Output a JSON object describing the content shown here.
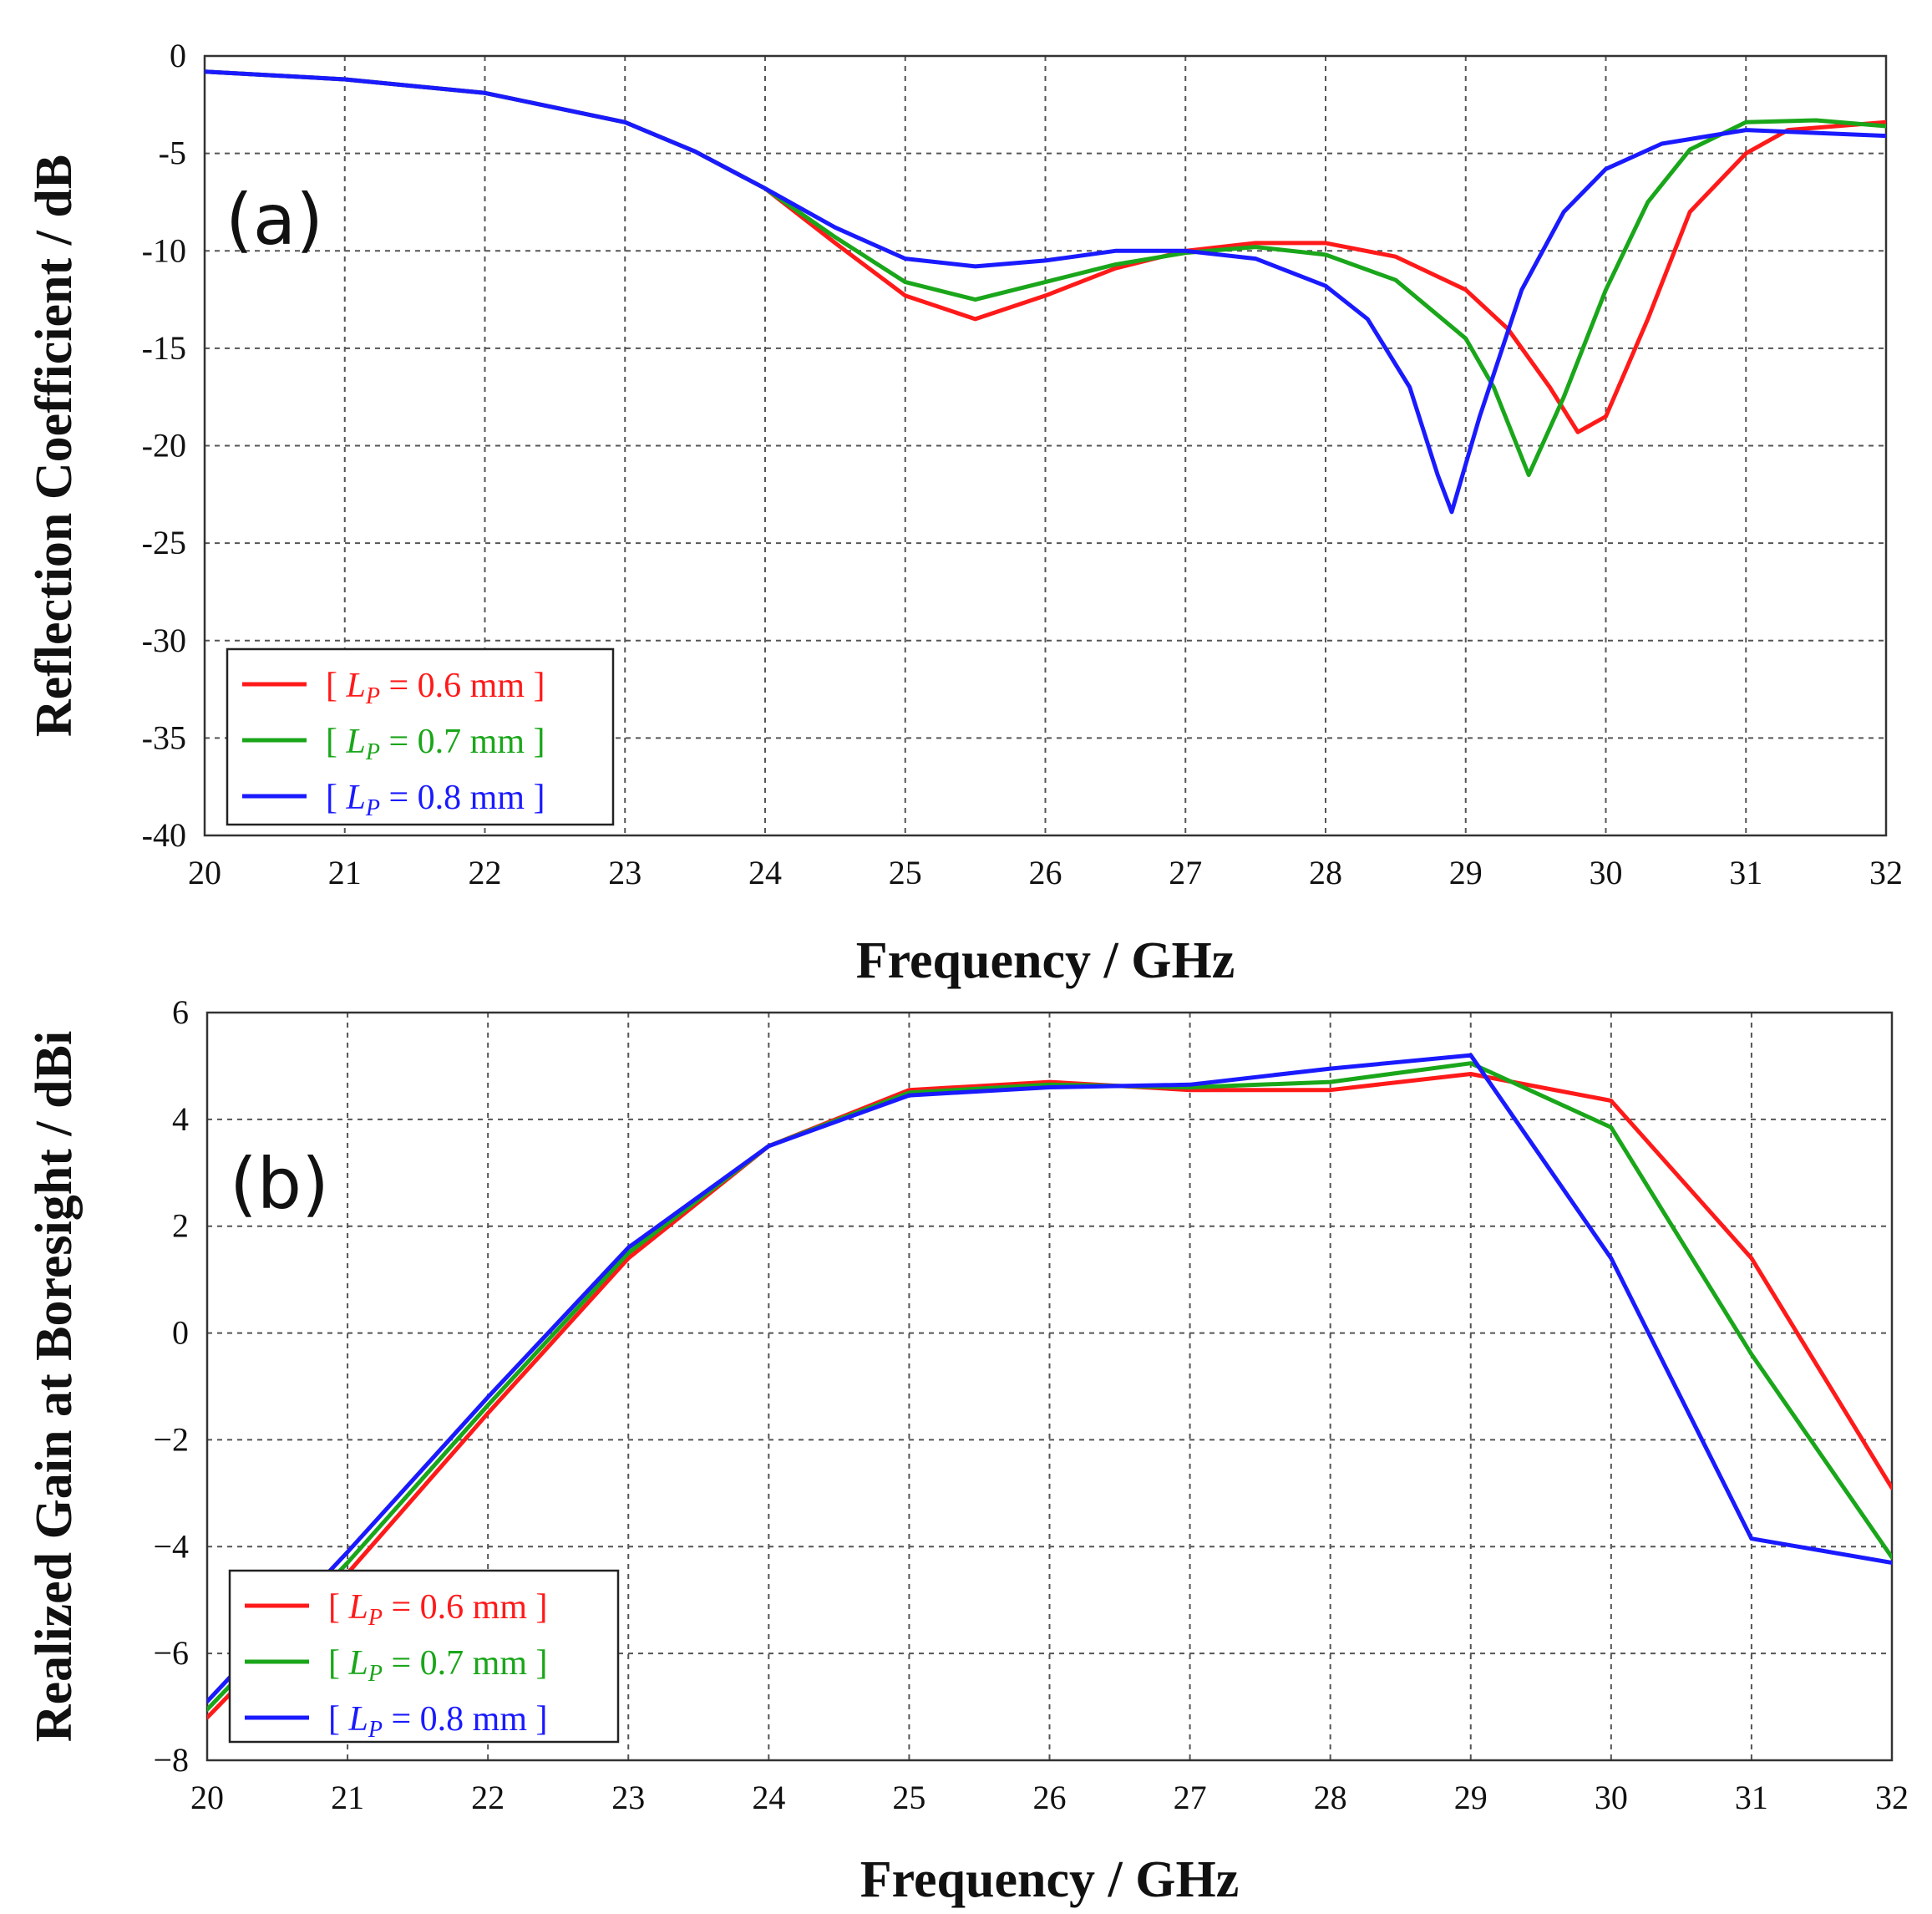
{
  "chart_data": [
    {
      "panel_label": "(a)",
      "type": "line",
      "xlabel": "Frequency / GHz",
      "ylabel": "Reflection Coefficient / dB",
      "xlim": [
        20,
        32
      ],
      "ylim": [
        -40,
        0
      ],
      "xticks": [
        20,
        21,
        22,
        23,
        24,
        25,
        26,
        27,
        28,
        29,
        30,
        31,
        32
      ],
      "yticks": [
        0,
        -5,
        -10,
        -15,
        -20,
        -25,
        -30,
        -35,
        -40
      ],
      "ytick_labels": [
        "0",
        "-5",
        "-10",
        "-15",
        "-20",
        "-25",
        "-30",
        "-35",
        "-40"
      ],
      "grid": true,
      "legend_position": "bottom-left",
      "series": [
        {
          "name": "[ LP = 0.6 mm ]",
          "legend": {
            "open": "[ ",
            "var": "L",
            "sub": "P",
            "rest": " = 0.6 mm ]"
          },
          "color": "#ff1a1a",
          "x": [
            20,
            21,
            22,
            23,
            23.5,
            24,
            24.5,
            25,
            25.5,
            26,
            26.5,
            27,
            27.5,
            28,
            28.5,
            29,
            29.3,
            29.6,
            29.8,
            30,
            30.3,
            30.6,
            31,
            31.3,
            32
          ],
          "y": [
            -0.8,
            -1.2,
            -1.9,
            -3.4,
            -4.9,
            -6.8,
            -9.6,
            -12.3,
            -13.5,
            -12.3,
            -10.9,
            -10.0,
            -9.6,
            -9.6,
            -10.3,
            -12.0,
            -14.0,
            -17.0,
            -19.3,
            -18.5,
            -13.5,
            -8.0,
            -5.0,
            -3.8,
            -3.4
          ]
        },
        {
          "name": "[ LP = 0.7 mm ]",
          "legend": {
            "open": "[ ",
            "var": "L",
            "sub": "P",
            "rest": " = 0.7 mm ]"
          },
          "color": "#1aa61a",
          "x": [
            20,
            21,
            22,
            23,
            23.5,
            24,
            24.5,
            25,
            25.5,
            26,
            26.5,
            27,
            27.5,
            28,
            28.5,
            29,
            29.2,
            29.45,
            29.7,
            30,
            30.3,
            30.6,
            31,
            31.5,
            32
          ],
          "y": [
            -0.8,
            -1.2,
            -1.9,
            -3.4,
            -4.9,
            -6.8,
            -9.3,
            -11.6,
            -12.5,
            -11.6,
            -10.7,
            -10.1,
            -9.8,
            -10.2,
            -11.5,
            -14.5,
            -17.0,
            -21.5,
            -17.5,
            -12.0,
            -7.5,
            -4.8,
            -3.4,
            -3.3,
            -3.6
          ]
        },
        {
          "name": "[ LP = 0.8 mm ]",
          "legend": {
            "open": "[ ",
            "var": "L",
            "sub": "P",
            "rest": " = 0.8 mm ]"
          },
          "color": "#1a1aff",
          "x": [
            20,
            21,
            22,
            23,
            23.5,
            24,
            24.5,
            25,
            25.5,
            26,
            26.5,
            27,
            27.5,
            28,
            28.3,
            28.6,
            28.8,
            28.9,
            29.1,
            29.4,
            29.7,
            30,
            30.4,
            31,
            32
          ],
          "y": [
            -0.8,
            -1.2,
            -1.9,
            -3.4,
            -4.9,
            -6.8,
            -8.8,
            -10.4,
            -10.8,
            -10.5,
            -10.0,
            -10.0,
            -10.4,
            -11.8,
            -13.5,
            -17.0,
            -21.5,
            -23.4,
            -18.5,
            -12.0,
            -8.0,
            -5.8,
            -4.5,
            -3.8,
            -4.1
          ]
        }
      ]
    },
    {
      "panel_label": "(b)",
      "type": "line",
      "xlabel": "Frequency / GHz",
      "ylabel": "Realized Gain at Boresight / dBi",
      "xlim": [
        20,
        32
      ],
      "ylim": [
        -8,
        6
      ],
      "xticks": [
        20,
        21,
        22,
        23,
        24,
        25,
        26,
        27,
        28,
        29,
        30,
        31,
        32
      ],
      "yticks": [
        6,
        4,
        2,
        0,
        -2,
        -4,
        -6,
        -8
      ],
      "ytick_labels": [
        "6",
        "4",
        "2",
        "0",
        "−2",
        "−4",
        "−6",
        "−8"
      ],
      "grid": true,
      "legend_position": "bottom-left",
      "series": [
        {
          "name": "[ LP = 0.6 mm ]",
          "legend": {
            "open": "[ ",
            "var": "L",
            "sub": "P",
            "rest": " = 0.6 mm ]"
          },
          "color": "#ff1a1a",
          "x": [
            20,
            21,
            22,
            23,
            24,
            25,
            26,
            27,
            28,
            29,
            30,
            31,
            32
          ],
          "y": [
            -7.2,
            -4.5,
            -1.5,
            1.4,
            3.5,
            4.55,
            4.7,
            4.55,
            4.55,
            4.85,
            4.35,
            1.4,
            -2.9
          ]
        },
        {
          "name": "[ LP = 0.7 mm ]",
          "legend": {
            "open": "[ ",
            "var": "L",
            "sub": "P",
            "rest": " = 0.7 mm ]"
          },
          "color": "#1aa61a",
          "x": [
            20,
            21,
            22,
            23,
            24,
            25,
            26,
            27,
            28,
            29,
            30,
            31,
            32
          ],
          "y": [
            -7.05,
            -4.3,
            -1.35,
            1.5,
            3.5,
            4.5,
            4.65,
            4.6,
            4.7,
            5.05,
            3.85,
            -0.4,
            -4.2
          ]
        },
        {
          "name": "[ LP = 0.8 mm ]",
          "legend": {
            "open": "[ ",
            "var": "L",
            "sub": "P",
            "rest": " = 0.8 mm ]"
          },
          "color": "#1a1aff",
          "x": [
            20,
            21,
            22,
            23,
            24,
            25,
            26,
            27,
            28,
            29,
            30,
            31,
            32
          ],
          "y": [
            -6.9,
            -4.1,
            -1.2,
            1.6,
            3.5,
            4.45,
            4.6,
            4.65,
            4.95,
            5.2,
            1.4,
            -3.85,
            -4.3
          ]
        }
      ]
    }
  ]
}
